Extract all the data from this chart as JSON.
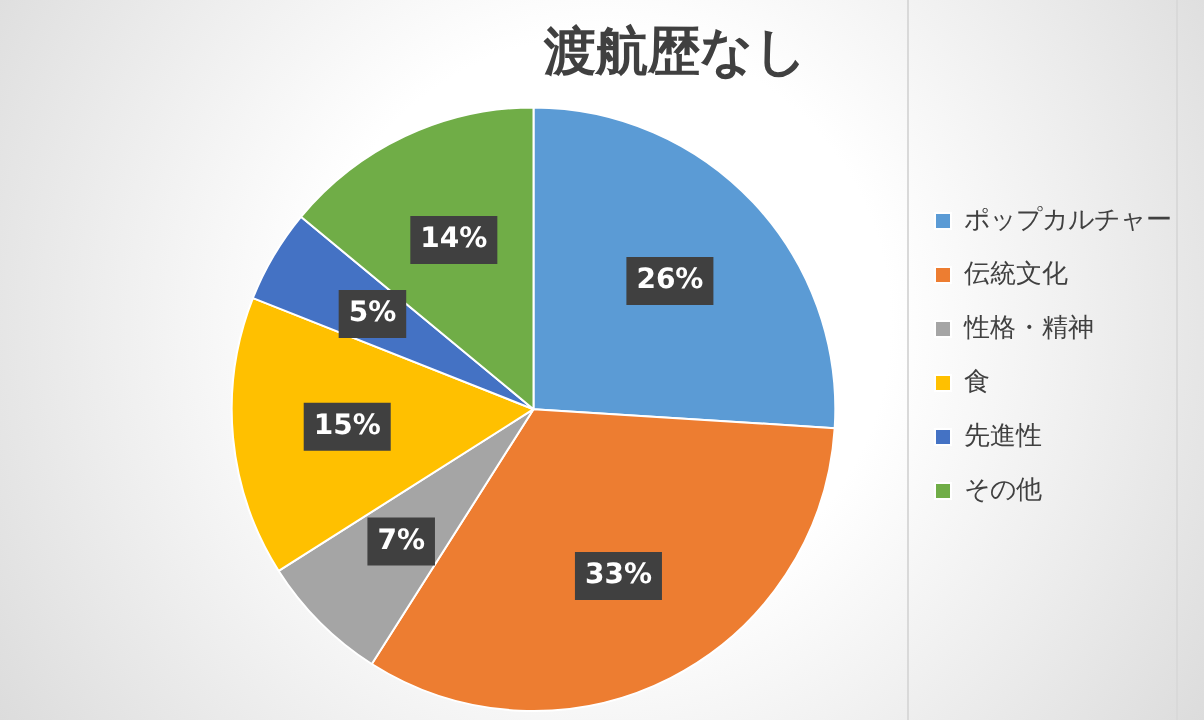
{
  "chart_data": {
    "type": "pie",
    "title": "渡航歴なし",
    "categories": [
      "ポップカルチャー",
      "伝統文化",
      "性格・精神",
      "食",
      "先進性",
      "その他"
    ],
    "values": [
      26,
      33,
      7,
      15,
      5,
      14
    ],
    "value_labels": [
      "26%",
      "33%",
      "7%",
      "15%",
      "5%",
      "14%"
    ],
    "colors": [
      "#5b9bd5",
      "#ed7d31",
      "#a5a5a5",
      "#ffc000",
      "#4472c4",
      "#70ad47"
    ],
    "legend": "right"
  }
}
